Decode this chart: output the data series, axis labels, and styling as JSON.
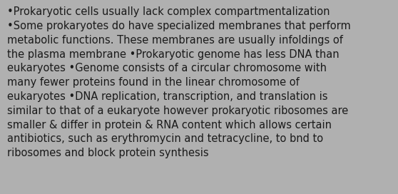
{
  "text": "•Prokaryotic cells usually lack complex compartmentalization\n•Some prokaryotes do have specialized membranes that perform\nmetabolic functions. These membranes are usually infoldings of\nthe plasma membrane •Prokaryotic genome has less DNA than\neukaryotes •Genome consists of a circular chromosome with\nmany fewer proteins found in the linear chromosome of\neukaryotes •DNA replication, transcription, and translation is\nsimilar to that of a eukaryote however prokaryotic ribosomes are\nsmaller & differ in protein & RNA content which allows certain\nantibiotics, such as erythromycin and tetracycline, to bnd to\nribosomes and block protein synthesis",
  "background_color": "#b0b0b0",
  "text_color": "#1a1a1a",
  "font_size": 10.5,
  "fig_width": 5.58,
  "fig_height": 2.72
}
